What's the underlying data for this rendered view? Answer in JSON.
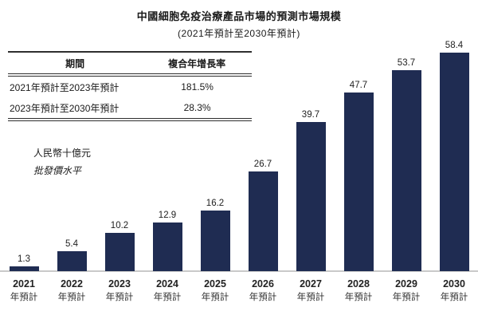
{
  "header": {
    "title": "中國細胞免疫治療產品市場的預測市場規模",
    "subtitle": "(2021年預計至2030年預計)"
  },
  "cagr_table": {
    "col_period": "期間",
    "col_cagr": "複合年增長率",
    "rows": [
      {
        "period": "2021年預計至2023年預計",
        "cagr": "181.5%"
      },
      {
        "period": "2023年預計至2030年預計",
        "cagr": "28.3%"
      }
    ]
  },
  "axis_notes": {
    "unit": "人民幣十億元",
    "price_basis": "批發價水平"
  },
  "chart_data": {
    "type": "bar",
    "title": "中國細胞免疫治療產品市場的預測市場規模",
    "subtitle": "(2021年預計至2030年預計)",
    "categories": [
      "2021年預計",
      "2022年預計",
      "2023年預計",
      "2024年預計",
      "2025年預計",
      "2026年預計",
      "2027年預計",
      "2028年預計",
      "2029年預計",
      "2030年預計"
    ],
    "values": [
      1.3,
      5.4,
      10.2,
      12.9,
      16.2,
      26.7,
      39.7,
      47.7,
      53.7,
      58.4
    ],
    "ylabel": "人民幣十億元（批發價水平）",
    "ylim": [
      0,
      60
    ],
    "grid": false,
    "legend": false,
    "value_labels_shown": true,
    "bar_color": "#1F2C52",
    "axis_line_color": "#C9C9C9"
  }
}
